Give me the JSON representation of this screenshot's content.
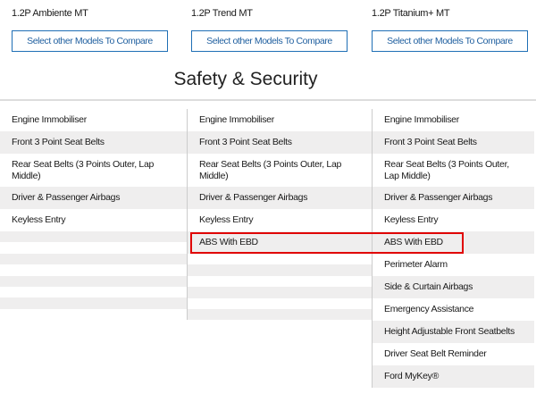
{
  "models": [
    {
      "name": "1.2P Ambiente MT",
      "button": "Select other Models To Compare"
    },
    {
      "name": "1.2P Trend MT",
      "button": "Select other Models To Compare"
    },
    {
      "name": "1.2P Titanium+ MT",
      "button": "Select other Models To Compare"
    }
  ],
  "section_title": "Safety & Security",
  "highlight_color": "#e00000",
  "columns": [
    {
      "features": [
        "Engine Immobiliser",
        "Front 3 Point Seat Belts",
        "Rear Seat Belts (3 Points Outer, Lap Middle)",
        "Driver & Passenger Airbags",
        "Keyless Entry"
      ],
      "empty_rows": 7
    },
    {
      "features": [
        "Engine Immobiliser",
        "Front 3 Point Seat Belts",
        "Rear Seat Belts (3 Points Outer, Lap Middle)",
        "Driver & Passenger Airbags",
        "Keyless Entry",
        "ABS With EBD"
      ],
      "empty_rows": 6
    },
    {
      "features": [
        "Engine Immobiliser",
        "Front 3 Point Seat Belts",
        "Rear Seat Belts (3 Points Outer, Lap Middle)",
        "Driver & Passenger Airbags",
        "Keyless Entry",
        "ABS With EBD",
        "Perimeter Alarm",
        "Side & Curtain Airbags",
        "Emergency Assistance",
        "Height Adjustable Front Seatbelts",
        "Driver Seat Belt Reminder",
        "Ford MyKey®"
      ],
      "empty_rows": 0
    }
  ]
}
